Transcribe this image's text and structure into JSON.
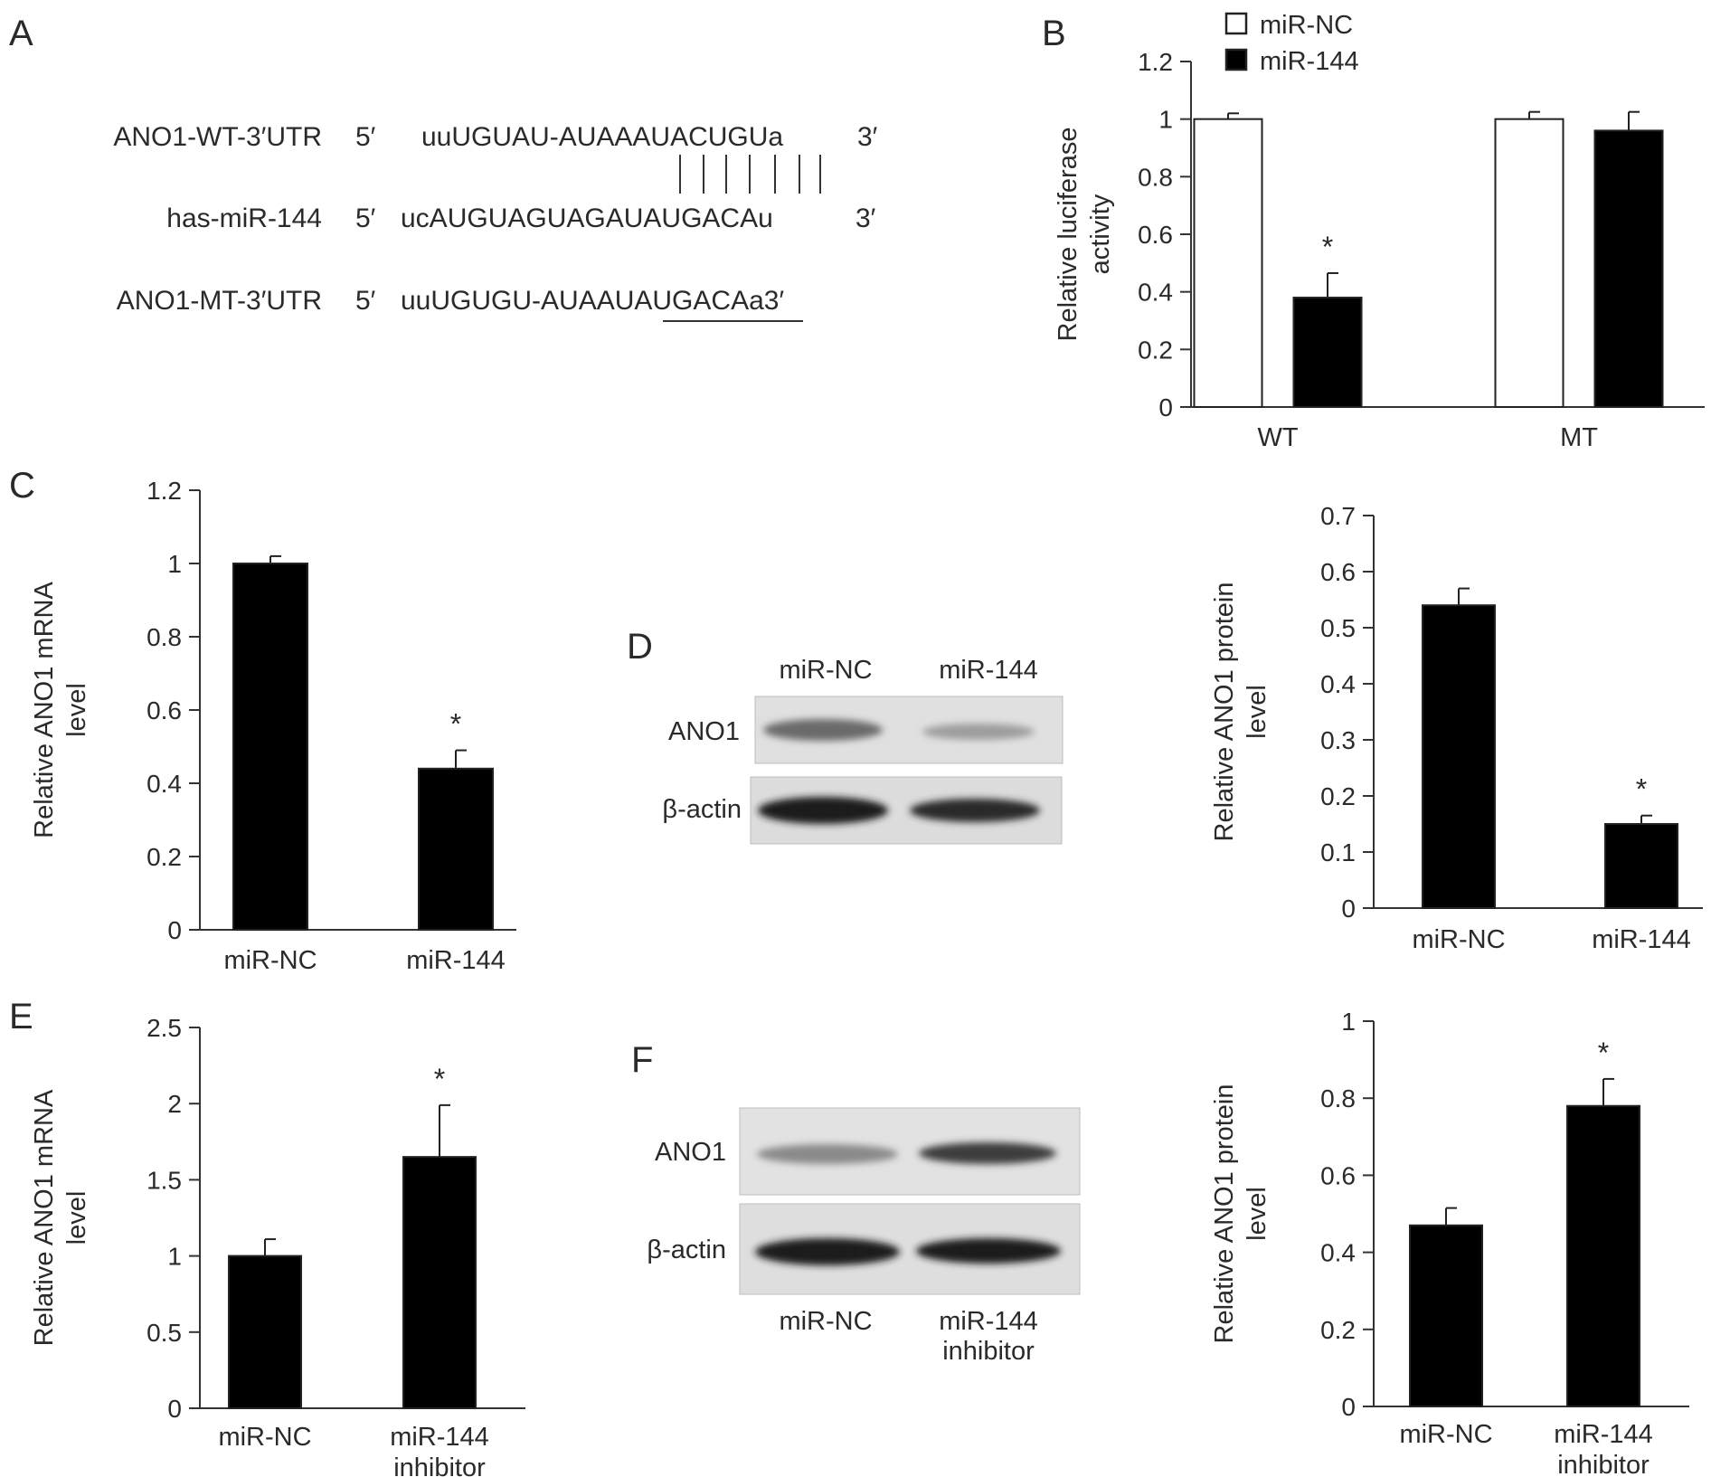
{
  "panel_letters": {
    "a": "A",
    "b": "B",
    "c": "C",
    "d": "D",
    "e": "E",
    "f": "F"
  },
  "panel_a": {
    "rows": [
      {
        "label": "ANO1-WT-3′UTR",
        "prime5": "5′",
        "sequence": "uuUGUAU-AUAAAUACUGUa",
        "prime3": "3′"
      },
      {
        "label": "has-miR-144",
        "prime5": "5′",
        "sequence": "ucAUGUAGUAGAUAUGACAu",
        "prime3": "3′"
      },
      {
        "label": "ANO1-MT-3′UTR",
        "prime5": "5′",
        "sequence": "uuUGUGU-AUAAUAUGACAa3′",
        "prime3": ""
      }
    ],
    "pairing_lines": 7
  },
  "blot_d": {
    "lanes": [
      "miR-NC",
      "miR-144"
    ],
    "bands": [
      "ANO1",
      "β-actin"
    ]
  },
  "blot_f": {
    "lanes": [
      "miR-NC",
      "miR-144",
      "inhibitor"
    ],
    "bands": [
      "ANO1",
      "β-actin"
    ]
  },
  "colors": {
    "bar_filled": "#000000",
    "bar_open": "#ffffff",
    "axis": "#333333",
    "text": "#2a2a2a"
  },
  "chart_data": [
    {
      "id": "B",
      "type": "bar",
      "categories": [
        "WT",
        "MT"
      ],
      "series": [
        {
          "name": "miR-NC",
          "values": [
            1.0,
            1.0
          ],
          "errors": [
            0.02,
            0.025
          ],
          "fill": "open"
        },
        {
          "name": "miR-144",
          "values": [
            0.38,
            0.96
          ],
          "errors": [
            0.085,
            0.065
          ],
          "fill": "filled"
        }
      ],
      "ylabel_lines": [
        "Relative luciferase",
        "activity"
      ],
      "ylim": [
        0,
        1.2
      ],
      "yticks": [
        "0",
        "0.2",
        "0.4",
        "0.6",
        "0.8",
        "1",
        "1.2"
      ],
      "significance": [
        "",
        "*",
        "",
        ""
      ],
      "legend": "top-left",
      "grid": false
    },
    {
      "id": "C",
      "type": "bar",
      "categories": [
        [
          "miR-NC"
        ],
        [
          "miR-144"
        ]
      ],
      "series": [
        {
          "values": [
            1.0,
            0.44
          ],
          "errors": [
            0.02,
            0.05
          ],
          "fill": "filled"
        }
      ],
      "ylabel_lines": [
        "Relative ANO1 mRNA",
        "level"
      ],
      "ylim": [
        0,
        1.2
      ],
      "yticks": [
        "0",
        "0.2",
        "0.4",
        "0.6",
        "0.8",
        "1",
        "1.2"
      ],
      "significance": [
        "",
        "*"
      ],
      "grid": false
    },
    {
      "id": "D",
      "type": "bar",
      "categories": [
        [
          "miR-NC"
        ],
        [
          "miR-144"
        ]
      ],
      "series": [
        {
          "values": [
            0.54,
            0.15
          ],
          "errors": [
            0.03,
            0.015
          ],
          "fill": "filled"
        }
      ],
      "ylabel_lines": [
        "Relative ANO1 protein",
        "level"
      ],
      "ylim": [
        0,
        0.7
      ],
      "yticks": [
        "0",
        "0.1",
        "0.2",
        "0.3",
        "0.4",
        "0.5",
        "0.6",
        "0.7"
      ],
      "significance": [
        "",
        "*"
      ],
      "grid": false
    },
    {
      "id": "E",
      "type": "bar",
      "categories": [
        [
          "miR-NC"
        ],
        [
          "miR-144",
          "inhibitor"
        ]
      ],
      "series": [
        {
          "values": [
            1.0,
            1.65
          ],
          "errors": [
            0.11,
            0.34
          ],
          "fill": "filled"
        }
      ],
      "ylabel_lines": [
        "Relative ANO1 mRNA",
        "level"
      ],
      "ylim": [
        0,
        2.5
      ],
      "yticks": [
        "0",
        "0.5",
        "1",
        "1.5",
        "2",
        "2.5"
      ],
      "significance": [
        "",
        "*"
      ],
      "grid": false
    },
    {
      "id": "F",
      "type": "bar",
      "categories": [
        [
          "miR-NC"
        ],
        [
          "miR-144",
          "inhibitor"
        ]
      ],
      "series": [
        {
          "values": [
            0.47,
            0.78
          ],
          "errors": [
            0.045,
            0.07
          ],
          "fill": "filled"
        }
      ],
      "ylabel_lines": [
        "Relative ANO1 protein",
        "level"
      ],
      "ylim": [
        0,
        1.0
      ],
      "yticks": [
        "0",
        "0.2",
        "0.4",
        "0.6",
        "0.8",
        "1"
      ],
      "significance": [
        "",
        "*"
      ],
      "grid": false
    }
  ]
}
